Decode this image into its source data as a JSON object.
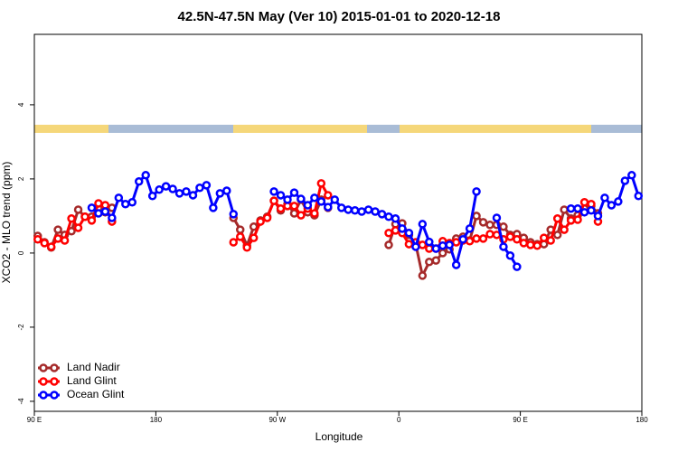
{
  "chart_data": {
    "type": "line",
    "title": "42.5N-47.5N May (Ver 10)   2015-01-01 to 2020-12-18",
    "xlabel": "Longitude",
    "ylabel": "XCO2 - MLO trend (ppm)",
    "x": [
      92.5,
      97.5,
      102.5,
      107.5,
      112.5,
      117.5,
      122.5,
      127.5,
      132.5,
      137.5,
      142.5,
      147.5,
      152.5,
      157.5,
      162.5,
      167.5,
      172.5,
      177.5,
      182.5,
      187.5,
      192.5,
      197.5,
      202.5,
      207.5,
      212.5,
      217.5,
      222.5,
      227.5,
      232.5,
      237.5,
      242.5,
      247.5,
      252.5,
      257.5,
      262.5,
      267.5,
      272.5,
      277.5,
      282.5,
      287.5,
      292.5,
      297.5,
      302.5,
      307.5,
      312.5,
      317.5,
      322.5,
      327.5,
      332.5,
      337.5,
      342.5,
      347.5,
      352.5,
      357.5,
      362.5,
      367.5,
      372.5,
      377.5,
      382.5,
      387.5,
      392.5,
      397.5,
      402.5,
      407.5,
      412.5,
      417.5,
      422.5,
      427.5,
      432.5,
      437.5,
      442.5,
      447.5,
      452.5,
      457.5,
      462.5,
      467.5,
      472.5,
      477.5,
      482.5,
      487.5,
      492.5,
      497.5,
      502.5,
      507.5,
      512.5,
      517.5,
      522.5,
      527.5,
      532.5,
      537.5
    ],
    "series": [
      {
        "name": "Land Nadir",
        "color": "#a52a2a",
        "values": [
          0.46,
          0.29,
          0.15,
          0.63,
          0.49,
          0.59,
          1.17,
          0.98,
          0.98,
          1.22,
          1.1,
          1.22,
          null,
          null,
          null,
          null,
          null,
          null,
          null,
          null,
          null,
          null,
          null,
          null,
          null,
          null,
          null,
          null,
          null,
          0.95,
          0.63,
          0.2,
          0.71,
          0.88,
          0.98,
          1.41,
          1.15,
          1.32,
          1.07,
          1.44,
          1.1,
          1.02,
          1.44,
          1.22,
          null,
          null,
          null,
          null,
          null,
          null,
          null,
          null,
          0.22,
          0.78,
          0.8,
          0.49,
          0.24,
          -0.61,
          -0.24,
          -0.2,
          0,
          0.1,
          0.39,
          0.44,
          0.34,
          1.0,
          0.83,
          0.76,
          0.76,
          0.71,
          0.49,
          0.51,
          0.41,
          0.29,
          0.24,
          0.24,
          0.63,
          0.49,
          1.17,
          0.93,
          1.02,
          1.2,
          1.27,
          1.07,
          null,
          null,
          null,
          null,
          null,
          null
        ]
      },
      {
        "name": "Land Glint",
        "color": "#ff0000",
        "values": [
          0.37,
          0.27,
          0.17,
          0.39,
          0.34,
          0.93,
          0.68,
          0.98,
          0.88,
          1.34,
          1.29,
          0.85,
          null,
          null,
          null,
          null,
          null,
          null,
          null,
          null,
          null,
          null,
          null,
          null,
          null,
          null,
          null,
          null,
          null,
          0.29,
          0.44,
          0.15,
          0.41,
          0.85,
          0.95,
          1.41,
          1.2,
          1.27,
          1.27,
          1.02,
          1.2,
          1.07,
          1.88,
          1.56,
          null,
          null,
          null,
          null,
          null,
          null,
          null,
          null,
          0.54,
          0.61,
          0.54,
          0.24,
          0.29,
          0.22,
          0.12,
          0.12,
          0.32,
          0.27,
          0.29,
          0.34,
          0.32,
          0.39,
          0.39,
          0.51,
          0.49,
          0.37,
          0.44,
          0.37,
          0.27,
          0.22,
          0.2,
          0.41,
          0.34,
          0.93,
          0.63,
          0.88,
          0.9,
          1.37,
          1.32,
          0.85,
          null,
          null,
          null,
          null,
          null,
          null
        ]
      },
      {
        "name": "Ocean Glint",
        "color": "#0000ff",
        "values": [
          null,
          null,
          null,
          null,
          null,
          null,
          null,
          null,
          1.22,
          1.07,
          1.12,
          0.95,
          1.49,
          1.32,
          1.37,
          1.93,
          2.1,
          1.54,
          1.71,
          1.8,
          1.73,
          1.61,
          1.66,
          1.56,
          1.76,
          1.83,
          1.22,
          1.61,
          1.68,
          1.05,
          null,
          null,
          null,
          null,
          null,
          1.66,
          1.56,
          1.44,
          1.63,
          1.46,
          1.29,
          1.49,
          1.39,
          1.24,
          1.44,
          1.22,
          1.17,
          1.15,
          1.12,
          1.17,
          1.12,
          1.05,
          0.98,
          0.93,
          0.66,
          0.54,
          0.17,
          0.78,
          0.3,
          0.12,
          0.2,
          0.22,
          -0.32,
          0.37,
          0.66,
          1.66,
          null,
          null,
          0.95,
          0.17,
          -0.07,
          -0.37,
          null,
          null,
          null,
          null,
          null,
          null,
          null,
          1.2,
          1.2,
          1.1,
          1.15,
          1.0,
          1.49,
          1.29,
          1.39,
          1.95,
          2.1,
          1.54
        ]
      }
    ],
    "xlim": [
      90,
      540
    ],
    "xticks": [
      {
        "value": 90,
        "label": "90 E"
      },
      180,
      {
        "value": 270,
        "label": "90 W"
      },
      {
        "value": 360,
        "label": "0"
      },
      {
        "value": 450,
        "label": "90 E"
      },
      {
        "value": 540,
        "label": "180"
      }
    ],
    "ylim": [
      -4.27,
      5.9
    ],
    "yticks": [
      -4,
      -2,
      0,
      2,
      4
    ],
    "legend": "bottomleft"
  }
}
